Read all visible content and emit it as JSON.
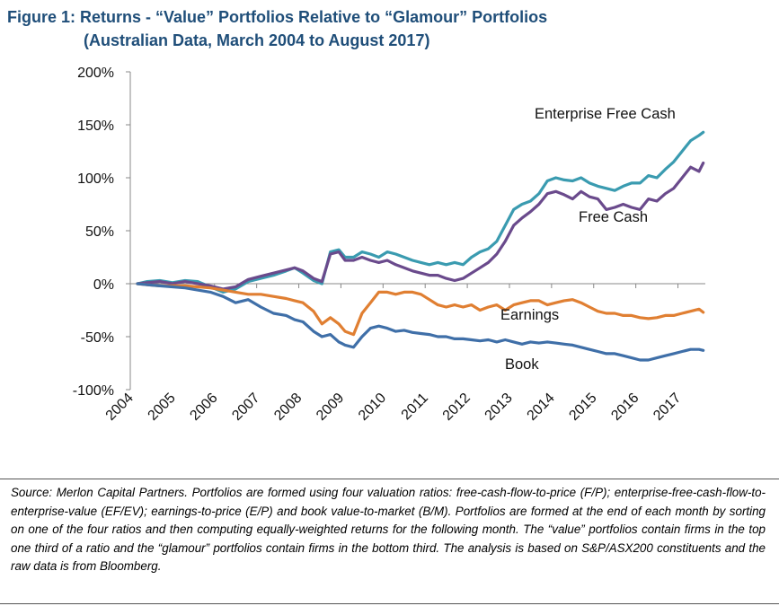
{
  "figure": {
    "title_line1": "Figure 1:  Returns - “Value” Portfolios Relative to “Glamour” Portfolios",
    "title_line2": "(Australian Data, March 2004 to August 2017)",
    "title_color": "#1f4e79"
  },
  "source_note": "Source: Merlon Capital Partners. Portfolios are formed using four valuation ratios: free-cash-flow-to-price (F/P); enterprise-free-cash-flow-to-enterprise-value (EF/EV); earnings-to-price (E/P) and book value-to-market (B/M). Portfolios are formed at the end of each month by sorting on one of the four ratios and then computing equally-weighted returns for the following month. The “value” portfolios contain firms in the top one third of a ratio and the “glamour” portfolios contain firms in the bottom third. The analysis is based on S&P/ASX200 constituents and the raw data is from Bloomberg.",
  "chart_data": {
    "type": "line",
    "title": "",
    "xlabel": "",
    "ylabel": "",
    "y_unit": "%",
    "ylim": [
      -100,
      200
    ],
    "yticks": [
      -100,
      -50,
      0,
      50,
      100,
      150,
      200
    ],
    "ytick_labels": [
      "-100%",
      "-50%",
      "0%",
      "50%",
      "100%",
      "150%",
      "200%"
    ],
    "xlim": [
      2004,
      2017.65
    ],
    "xticks": [
      2004,
      2005,
      2006,
      2007,
      2008,
      2009,
      2010,
      2011,
      2012,
      2013,
      2014,
      2015,
      2016,
      2017
    ],
    "xtick_labels": [
      "2004",
      "2005",
      "2006",
      "2007",
      "2008",
      "2009",
      "2010",
      "2011",
      "2012",
      "2013",
      "2014",
      "2015",
      "2016",
      "2017"
    ],
    "grid": false,
    "legend": "direct labels",
    "series": [
      {
        "name": "Enterprise Free Cash",
        "color": "#3a9bb0",
        "x": [
          2004.17,
          2004.4,
          2004.7,
          2005.0,
          2005.3,
          2005.6,
          2005.9,
          2006.2,
          2006.5,
          2006.8,
          2007.1,
          2007.4,
          2007.7,
          2007.9,
          2008.1,
          2008.35,
          2008.55,
          2008.75,
          2008.95,
          2009.1,
          2009.3,
          2009.5,
          2009.7,
          2009.9,
          2010.1,
          2010.3,
          2010.5,
          2010.7,
          2010.9,
          2011.1,
          2011.3,
          2011.5,
          2011.7,
          2011.9,
          2012.1,
          2012.3,
          2012.5,
          2012.7,
          2012.9,
          2013.1,
          2013.3,
          2013.5,
          2013.7,
          2013.9,
          2014.1,
          2014.3,
          2014.5,
          2014.7,
          2014.9,
          2015.1,
          2015.3,
          2015.5,
          2015.7,
          2015.9,
          2016.1,
          2016.3,
          2016.5,
          2016.7,
          2016.9,
          2017.1,
          2017.3,
          2017.5,
          2017.6
        ],
        "y": [
          0,
          2,
          3,
          1,
          3,
          2,
          -3,
          -8,
          -5,
          2,
          5,
          8,
          12,
          15,
          10,
          3,
          0,
          30,
          32,
          25,
          25,
          30,
          28,
          25,
          30,
          28,
          25,
          22,
          20,
          18,
          20,
          18,
          20,
          18,
          25,
          30,
          33,
          40,
          55,
          70,
          75,
          78,
          85,
          97,
          100,
          98,
          97,
          100,
          95,
          92,
          90,
          88,
          92,
          95,
          95,
          102,
          100,
          108,
          115,
          125,
          135,
          140,
          143
        ]
      },
      {
        "name": "Free Cash",
        "color": "#6a4a8c",
        "x": [
          2004.17,
          2004.4,
          2004.7,
          2005.0,
          2005.3,
          2005.6,
          2005.9,
          2006.2,
          2006.5,
          2006.8,
          2007.1,
          2007.4,
          2007.7,
          2007.9,
          2008.1,
          2008.35,
          2008.55,
          2008.75,
          2008.95,
          2009.1,
          2009.3,
          2009.5,
          2009.7,
          2009.9,
          2010.1,
          2010.3,
          2010.5,
          2010.7,
          2010.9,
          2011.1,
          2011.3,
          2011.5,
          2011.7,
          2011.9,
          2012.1,
          2012.3,
          2012.5,
          2012.7,
          2012.9,
          2013.1,
          2013.3,
          2013.5,
          2013.7,
          2013.9,
          2014.1,
          2014.3,
          2014.5,
          2014.7,
          2014.9,
          2015.1,
          2015.3,
          2015.5,
          2015.7,
          2015.9,
          2016.1,
          2016.3,
          2016.5,
          2016.7,
          2016.9,
          2017.1,
          2017.3,
          2017.5,
          2017.6
        ],
        "y": [
          0,
          1,
          2,
          0,
          2,
          0,
          -2,
          -5,
          -3,
          4,
          7,
          10,
          13,
          15,
          12,
          5,
          2,
          28,
          30,
          22,
          22,
          25,
          22,
          20,
          22,
          18,
          15,
          12,
          10,
          8,
          8,
          5,
          3,
          5,
          10,
          15,
          20,
          28,
          40,
          55,
          62,
          68,
          75,
          85,
          87,
          84,
          80,
          87,
          82,
          80,
          70,
          72,
          75,
          72,
          70,
          80,
          78,
          85,
          90,
          100,
          110,
          106,
          114
        ]
      },
      {
        "name": "Earnings",
        "color": "#e07f32",
        "x": [
          2004.17,
          2004.4,
          2004.7,
          2005.0,
          2005.3,
          2005.6,
          2005.9,
          2006.2,
          2006.5,
          2006.8,
          2007.1,
          2007.4,
          2007.7,
          2007.9,
          2008.1,
          2008.35,
          2008.55,
          2008.75,
          2008.95,
          2009.1,
          2009.3,
          2009.5,
          2009.7,
          2009.9,
          2010.1,
          2010.3,
          2010.5,
          2010.7,
          2010.9,
          2011.1,
          2011.3,
          2011.5,
          2011.7,
          2011.9,
          2012.1,
          2012.3,
          2012.5,
          2012.7,
          2012.9,
          2013.1,
          2013.3,
          2013.5,
          2013.7,
          2013.9,
          2014.1,
          2014.3,
          2014.5,
          2014.7,
          2014.9,
          2015.1,
          2015.3,
          2015.5,
          2015.7,
          2015.9,
          2016.1,
          2016.3,
          2016.5,
          2016.7,
          2016.9,
          2017.1,
          2017.3,
          2017.5,
          2017.6
        ],
        "y": [
          0,
          -1,
          -2,
          -2,
          -2,
          -3,
          -4,
          -6,
          -8,
          -10,
          -10,
          -12,
          -14,
          -16,
          -18,
          -26,
          -38,
          -32,
          -38,
          -45,
          -48,
          -28,
          -18,
          -8,
          -8,
          -10,
          -8,
          -8,
          -10,
          -15,
          -20,
          -22,
          -20,
          -22,
          -20,
          -25,
          -22,
          -20,
          -25,
          -20,
          -18,
          -16,
          -16,
          -20,
          -18,
          -16,
          -15,
          -18,
          -22,
          -26,
          -28,
          -28,
          -30,
          -30,
          -32,
          -33,
          -32,
          -30,
          -30,
          -28,
          -26,
          -24,
          -27
        ]
      },
      {
        "name": "Book",
        "color": "#3f6fa8",
        "x": [
          2004.17,
          2004.4,
          2004.7,
          2005.0,
          2005.3,
          2005.6,
          2005.9,
          2006.2,
          2006.5,
          2006.8,
          2007.1,
          2007.4,
          2007.7,
          2007.9,
          2008.1,
          2008.35,
          2008.55,
          2008.75,
          2008.95,
          2009.1,
          2009.3,
          2009.5,
          2009.7,
          2009.9,
          2010.1,
          2010.3,
          2010.5,
          2010.7,
          2010.9,
          2011.1,
          2011.3,
          2011.5,
          2011.7,
          2011.9,
          2012.1,
          2012.3,
          2012.5,
          2012.7,
          2012.9,
          2013.1,
          2013.3,
          2013.5,
          2013.7,
          2013.9,
          2014.1,
          2014.3,
          2014.5,
          2014.7,
          2014.9,
          2015.1,
          2015.3,
          2015.5,
          2015.7,
          2015.9,
          2016.1,
          2016.3,
          2016.5,
          2016.7,
          2016.9,
          2017.1,
          2017.3,
          2017.5,
          2017.6
        ],
        "y": [
          0,
          -1,
          -2,
          -3,
          -4,
          -6,
          -8,
          -12,
          -18,
          -15,
          -22,
          -28,
          -30,
          -34,
          -36,
          -45,
          -50,
          -48,
          -55,
          -58,
          -60,
          -50,
          -42,
          -40,
          -42,
          -45,
          -44,
          -46,
          -47,
          -48,
          -50,
          -50,
          -52,
          -52,
          -53,
          -54,
          -53,
          -55,
          -53,
          -55,
          -57,
          -55,
          -56,
          -55,
          -56,
          -57,
          -58,
          -60,
          -62,
          -64,
          -66,
          -66,
          -68,
          -70,
          -72,
          -72,
          -70,
          -68,
          -66,
          -64,
          -62,
          -62,
          -63
        ]
      }
    ],
    "annotations": [
      {
        "text": "Enterprise Free Cash",
        "series": "Enterprise Free Cash"
      },
      {
        "text": "Free Cash",
        "series": "Free Cash"
      },
      {
        "text": "Earnings",
        "series": "Earnings"
      },
      {
        "text": "Book",
        "series": "Book"
      }
    ]
  }
}
